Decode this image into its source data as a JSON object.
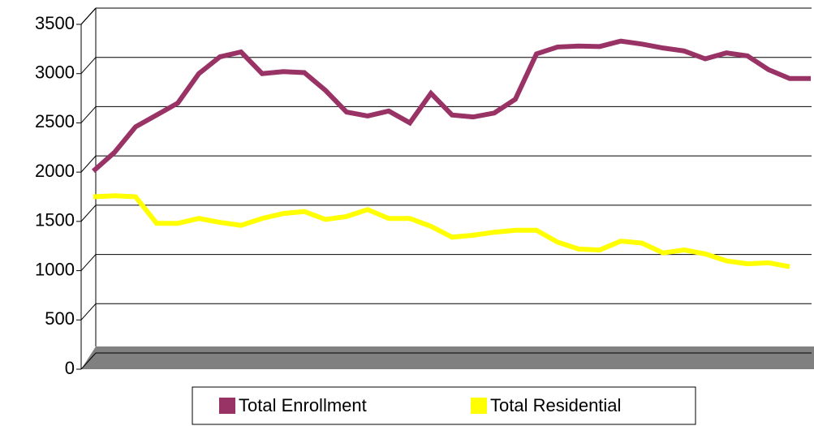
{
  "chart_data": {
    "type": "line",
    "ylim": [
      0,
      3500
    ],
    "yticks": [
      0,
      500,
      1000,
      1500,
      2000,
      2500,
      3000,
      3500
    ],
    "grid": true,
    "legend": "bottom",
    "series": [
      {
        "name": "Total Enrollment",
        "color": "#993366",
        "values": [
          2010,
          2200,
          2460,
          2580,
          2700,
          3000,
          3170,
          3220,
          3000,
          3020,
          3010,
          2830,
          2610,
          2570,
          2620,
          2500,
          2800,
          2580,
          2560,
          2600,
          2740,
          3200,
          3270,
          3280,
          3275,
          3330,
          3300,
          3260,
          3230,
          3150,
          3210,
          3180,
          3040,
          2950,
          2950
        ]
      },
      {
        "name": "Total Residential",
        "color": "#ffff00",
        "values": [
          1750,
          1760,
          1750,
          1480,
          1480,
          1530,
          1490,
          1460,
          1530,
          1580,
          1600,
          1520,
          1550,
          1620,
          1530,
          1530,
          1450,
          1340,
          1360,
          1390,
          1410,
          1410,
          1290,
          1220,
          1210,
          1300,
          1280,
          1180,
          1210,
          1170,
          1100,
          1070,
          1080,
          1040,
          null
        ]
      }
    ]
  }
}
